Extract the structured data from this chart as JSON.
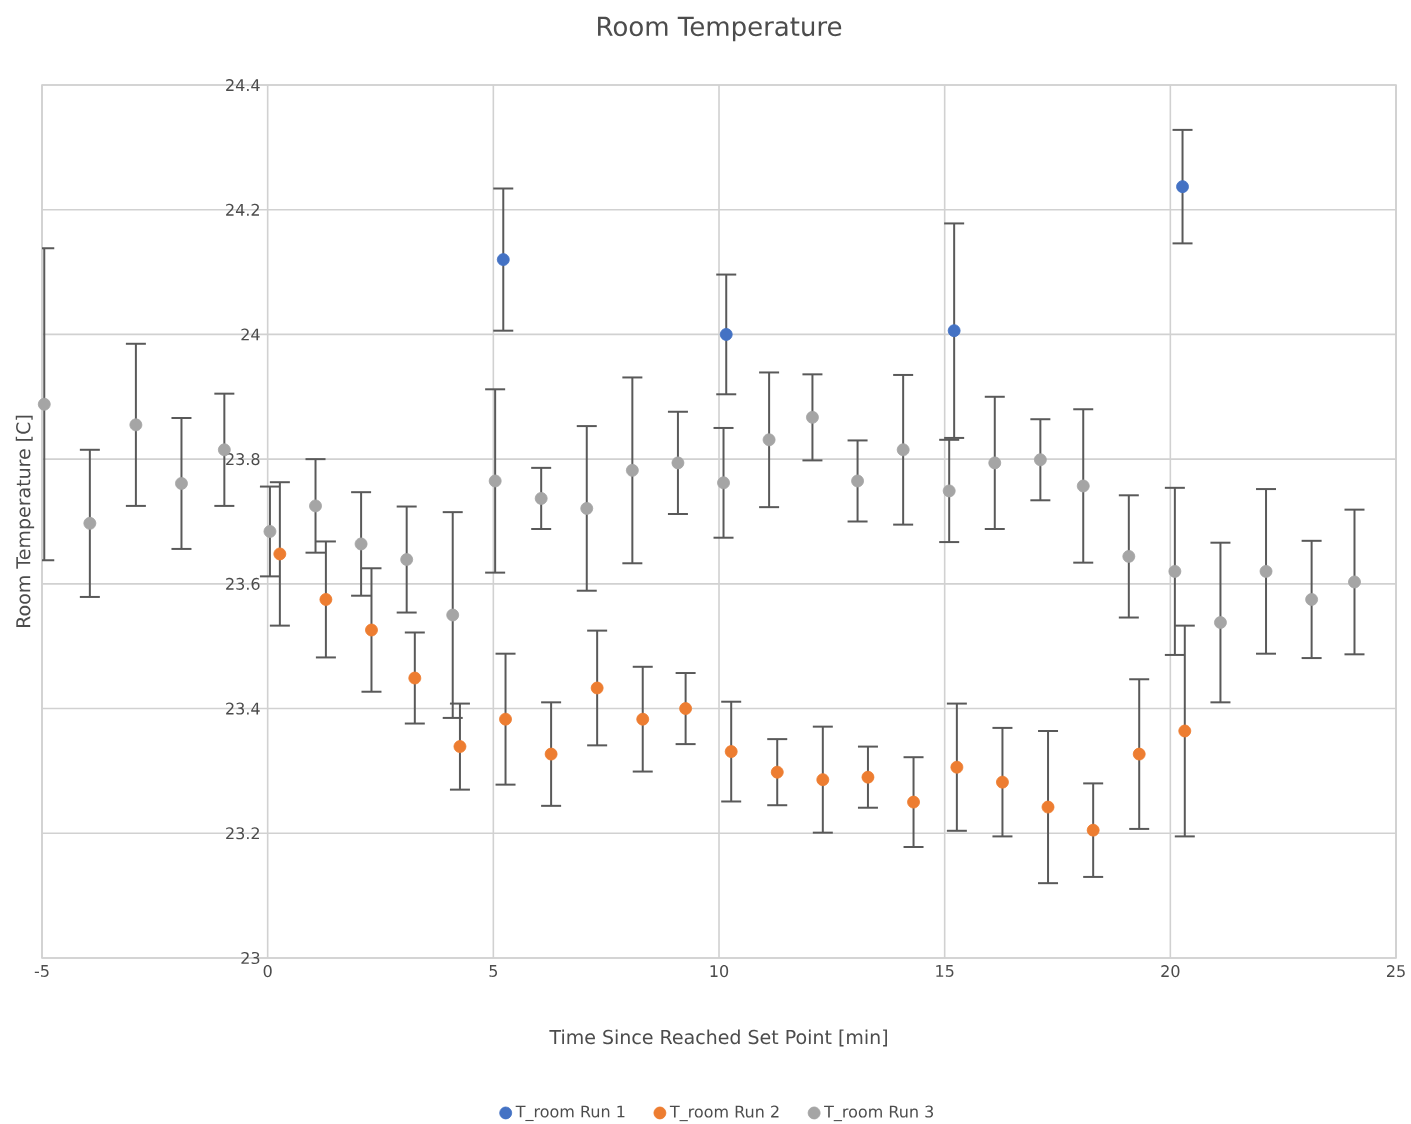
{
  "chart_data": {
    "type": "scatter",
    "title": "Room Temperature",
    "xlabel": "Time Since Reached Set Point  [min]",
    "ylabel": "Room Temperature  [C]",
    "xlim": [
      -5,
      25
    ],
    "xticks": [
      -5,
      0,
      5,
      10,
      15,
      20,
      25
    ],
    "ylim": [
      23,
      24.4
    ],
    "yticks": [
      23,
      23.2,
      23.4,
      23.6,
      23.8,
      24,
      24.2,
      24.4
    ],
    "grid": true,
    "legend": "bottom",
    "marker": "circle",
    "series": [
      {
        "name": "T_room Run 1",
        "color": "#4472c4",
        "x": [
          5.22,
          10.16,
          15.21,
          20.27
        ],
        "values": [
          24.12,
          24.0,
          24.006,
          24.237
        ],
        "errors": [
          0.114,
          0.096,
          0.172,
          0.091
        ]
      },
      {
        "name": "T_room Run 2",
        "color": "#ed7d31",
        "x": [
          0.27,
          1.29,
          2.3,
          3.26,
          4.26,
          5.27,
          6.28,
          7.3,
          8.31,
          9.26,
          10.27,
          11.29,
          12.3,
          13.3,
          14.31,
          15.27,
          16.28,
          17.29,
          18.29,
          19.31,
          20.32
        ],
        "values": [
          23.648,
          23.575,
          23.526,
          23.449,
          23.339,
          23.383,
          23.327,
          23.433,
          23.383,
          23.4,
          23.331,
          23.298,
          23.286,
          23.29,
          23.25,
          23.306,
          23.282,
          23.242,
          23.205,
          23.327,
          23.364
        ],
        "errors": [
          0.115,
          0.093,
          0.099,
          0.073,
          0.069,
          0.105,
          0.083,
          0.092,
          0.084,
          0.057,
          0.08,
          0.053,
          0.085,
          0.049,
          0.072,
          0.102,
          0.087,
          0.122,
          0.075,
          0.12,
          0.169
        ]
      },
      {
        "name": "T_room Run 3",
        "color": "#a5a5a5",
        "x": [
          -4.95,
          -3.94,
          -2.92,
          -1.91,
          -0.96,
          0.05,
          1.06,
          2.07,
          3.08,
          4.1,
          5.04,
          6.06,
          7.07,
          8.08,
          9.09,
          10.1,
          11.11,
          12.07,
          13.07,
          14.08,
          15.1,
          16.11,
          17.12,
          18.07,
          19.08,
          20.1,
          21.11,
          22.12,
          23.13,
          24.08
        ],
        "values": [
          23.888,
          23.697,
          23.855,
          23.761,
          23.815,
          23.684,
          23.725,
          23.664,
          23.639,
          23.55,
          23.765,
          23.737,
          23.721,
          23.782,
          23.794,
          23.762,
          23.831,
          23.867,
          23.765,
          23.815,
          23.749,
          23.794,
          23.799,
          23.757,
          23.644,
          23.62,
          23.538,
          23.62,
          23.575,
          23.603
        ],
        "errors": [
          0.25,
          0.118,
          0.13,
          0.105,
          0.09,
          0.072,
          0.075,
          0.083,
          0.085,
          0.165,
          0.147,
          0.049,
          0.132,
          0.149,
          0.082,
          0.088,
          0.108,
          0.069,
          0.065,
          0.12,
          0.082,
          0.106,
          0.065,
          0.123,
          0.098,
          0.134,
          0.128,
          0.132,
          0.094,
          0.116
        ]
      }
    ]
  }
}
